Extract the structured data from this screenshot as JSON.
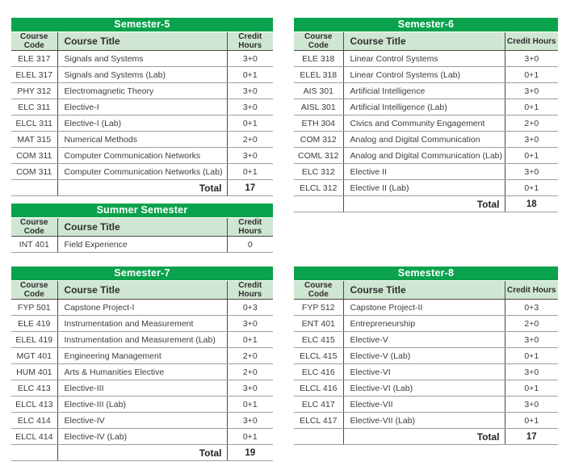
{
  "colors": {
    "title_bar_green": "#0aa24c",
    "header_row_green": "#cfe6d3",
    "body_text": "#3c3c3c",
    "dark_border": "#4a4a4a",
    "light_border": "#9c9c9c"
  },
  "columns": [
    "Course Code",
    "Course Title",
    "Credit Hours"
  ],
  "total_label": "Total",
  "tables": [
    {
      "title": "Semester-5",
      "rows": [
        [
          "ELE 317",
          "Signals and Systems",
          "3+0"
        ],
        [
          "ELEL 317",
          "Signals and Systems (Lab)",
          "0+1"
        ],
        [
          "PHY 312",
          "Electromagnetic Theory",
          "3+0"
        ],
        [
          "ELC 311",
          "Elective-I",
          "3+0"
        ],
        [
          "ELCL 311",
          "Elective-I (Lab)",
          "0+1"
        ],
        [
          "MAT 315",
          "Numerical Methods",
          "2+0"
        ],
        [
          "COM 311",
          "Computer Communication Networks",
          "3+0"
        ],
        [
          "COM 311",
          "Computer Communication Networks (Lab)",
          "0+1"
        ]
      ],
      "total": "17"
    },
    {
      "title": "Summer Semester",
      "rows": [
        [
          "INT 401",
          "Field Experience",
          "0"
        ]
      ],
      "total": null
    },
    {
      "title": "Semester-7",
      "rows": [
        [
          "FYP 501",
          "Capstone Project-I",
          "0+3"
        ],
        [
          "ELE 419",
          "Instrumentation and Measurement",
          "3+0"
        ],
        [
          "ELEL 419",
          "Instrumentation and Measurement (Lab)",
          "0+1"
        ],
        [
          "MGT 401",
          "Engineering Management",
          "2+0"
        ],
        [
          "HUM 401",
          "Arts & Humanities Elective",
          "2+0"
        ],
        [
          "ELC 413",
          "Elective-III",
          "3+0"
        ],
        [
          "ELCL 413",
          "Elective-III (Lab)",
          "0+1"
        ],
        [
          "ELC 414",
          "Elective-IV",
          "3+0"
        ],
        [
          "ELCL 414",
          "Elective-IV (Lab)",
          "0+1"
        ]
      ],
      "total": "19"
    },
    {
      "title": "Semester-6",
      "rows": [
        [
          "ELE 318",
          "Linear Control Systems",
          "3+0"
        ],
        [
          "ELEL 318",
          "Linear Control Systems (Lab)",
          "0+1"
        ],
        [
          "AIS 301",
          "Artificial Intelligence",
          "3+0"
        ],
        [
          "AISL 301",
          "Artificial Intelligence (Lab)",
          "0+1"
        ],
        [
          "ETH 304",
          "Civics and Community Engagement",
          "2+0"
        ],
        [
          "COM 312",
          "Analog and Digital Communication",
          "3+0"
        ],
        [
          "COML 312",
          "Analog and Digital Communication (Lab)",
          "0+1"
        ],
        [
          "ELC 312",
          "Elective II",
          "3+0"
        ],
        [
          "ELCL 312",
          "Elective II (Lab)",
          "0+1"
        ]
      ],
      "total": "18"
    },
    {
      "title": "Semester-8",
      "rows": [
        [
          "FYP 512",
          "Capstone Project-II",
          "0+3"
        ],
        [
          "ENT 401",
          "Entrepreneurship",
          "2+0"
        ],
        [
          "ELC 415",
          "Elective-V",
          "3+0"
        ],
        [
          "ELCL 415",
          "Elective-V (Lab)",
          "0+1"
        ],
        [
          "ELC 416",
          "Elective-VI",
          "3+0"
        ],
        [
          "ELCL 416",
          "Elective-VI (Lab)",
          "0+1"
        ],
        [
          "ELC 417",
          "Elective-VII",
          "3+0"
        ],
        [
          "ELCL 417",
          "Elective-VII (Lab)",
          "0+1"
        ]
      ],
      "total": "17"
    }
  ]
}
